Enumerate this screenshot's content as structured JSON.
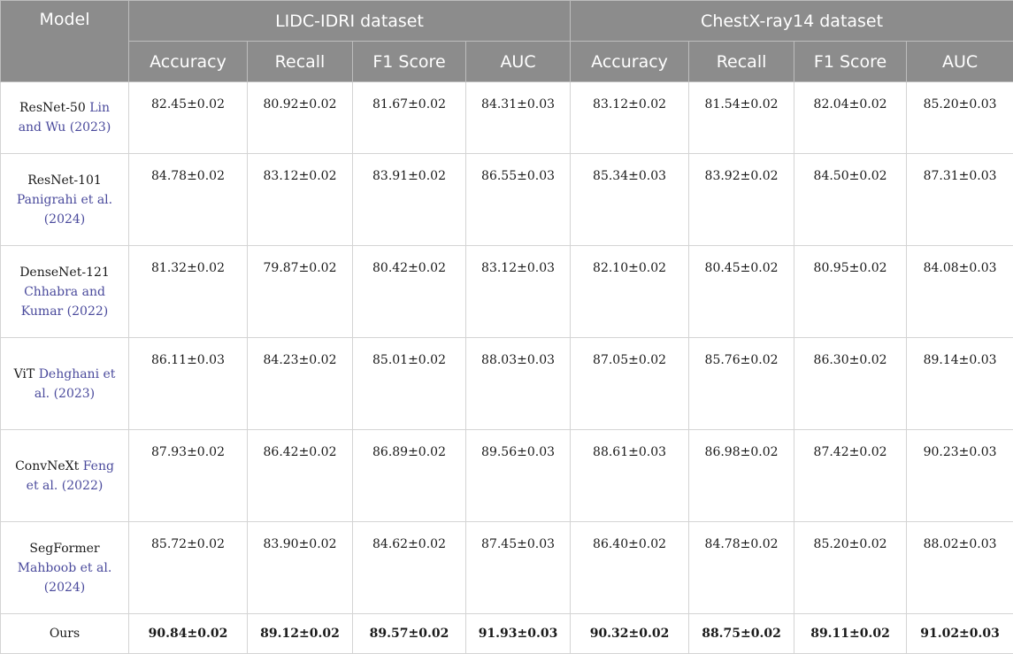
{
  "header": {
    "model_label": "Model",
    "groups": [
      "LIDC-IDRI dataset",
      "ChestX-ray14 dataset"
    ],
    "metrics": [
      "Accuracy",
      "Recall",
      "F1 Score",
      "AUC",
      "Accuracy",
      "Recall",
      "F1 Score",
      "AUC"
    ]
  },
  "rows": [
    {
      "name": "ResNet-50",
      "cite": "Lin and Wu (2023)",
      "values": [
        "82.45±0.02",
        "80.92±0.02",
        "81.67±0.02",
        "84.31±0.03",
        "83.12±0.02",
        "81.54±0.02",
        "82.04±0.02",
        "85.20±0.03"
      ]
    },
    {
      "name": "ResNet-101",
      "cite": "Panigrahi et al. (2024)",
      "values": [
        "84.78±0.02",
        "83.12±0.02",
        "83.91±0.02",
        "86.55±0.03",
        "85.34±0.03",
        "83.92±0.02",
        "84.50±0.02",
        "87.31±0.03"
      ]
    },
    {
      "name": "DenseNet-121",
      "cite": "Chhabra and Kumar (2022)",
      "values": [
        "81.32±0.02",
        "79.87±0.02",
        "80.42±0.02",
        "83.12±0.03",
        "82.10±0.02",
        "80.45±0.02",
        "80.95±0.02",
        "84.08±0.03"
      ]
    },
    {
      "name": "ViT",
      "cite": "Dehghani et al. (2023)",
      "values": [
        "86.11±0.03",
        "84.23±0.02",
        "85.01±0.02",
        "88.03±0.03",
        "87.05±0.02",
        "85.76±0.02",
        "86.30±0.02",
        "89.14±0.03"
      ]
    },
    {
      "name": "ConvNeXt",
      "cite": "Feng et al. (2022)",
      "values": [
        "87.93±0.02",
        "86.42±0.02",
        "86.89±0.02",
        "89.56±0.03",
        "88.61±0.03",
        "86.98±0.02",
        "87.42±0.02",
        "90.23±0.03"
      ]
    },
    {
      "name": "SegFormer",
      "cite": "Mahboob et al. (2024)",
      "values": [
        "85.72±0.02",
        "83.90±0.02",
        "84.62±0.02",
        "87.45±0.03",
        "86.40±0.02",
        "84.78±0.02",
        "85.20±0.02",
        "88.02±0.03"
      ]
    },
    {
      "name": "Ours",
      "cite": "",
      "values": [
        "90.84±0.02",
        "89.12±0.02",
        "89.57±0.02",
        "91.93±0.03",
        "90.32±0.02",
        "88.75±0.02",
        "89.11±0.02",
        "91.02±0.03"
      ]
    }
  ]
}
